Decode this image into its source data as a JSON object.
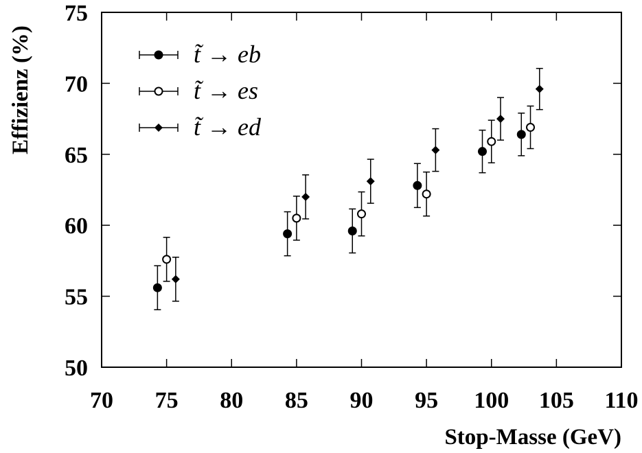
{
  "chart_data": {
    "type": "scatter",
    "xlabel": "Stop-Masse (GeV)",
    "ylabel": "Effizienz (%)",
    "xlim": [
      70,
      110
    ],
    "ylim": [
      50,
      75
    ],
    "xticks": [
      70,
      75,
      80,
      85,
      90,
      95,
      100,
      105,
      110
    ],
    "yticks": [
      50,
      55,
      60,
      65,
      70,
      75
    ],
    "legend_position": "top-left",
    "series": [
      {
        "name": "t̃ → eb",
        "marker": "filled-circle",
        "points": [
          {
            "x": 74.3,
            "y": 55.6,
            "err": 1.55
          },
          {
            "x": 84.3,
            "y": 59.4,
            "err": 1.55
          },
          {
            "x": 89.3,
            "y": 59.6,
            "err": 1.55
          },
          {
            "x": 94.3,
            "y": 62.8,
            "err": 1.55
          },
          {
            "x": 99.3,
            "y": 65.2,
            "err": 1.5
          },
          {
            "x": 102.3,
            "y": 66.4,
            "err": 1.5
          }
        ]
      },
      {
        "name": "t̃ → es",
        "marker": "open-circle",
        "points": [
          {
            "x": 75.0,
            "y": 57.6,
            "err": 1.55
          },
          {
            "x": 85.0,
            "y": 60.5,
            "err": 1.55
          },
          {
            "x": 90.0,
            "y": 60.8,
            "err": 1.55
          },
          {
            "x": 95.0,
            "y": 62.2,
            "err": 1.55
          },
          {
            "x": 100.0,
            "y": 65.9,
            "err": 1.5
          },
          {
            "x": 103.0,
            "y": 66.9,
            "err": 1.5
          }
        ]
      },
      {
        "name": "t̃ → ed",
        "marker": "filled-diamond",
        "points": [
          {
            "x": 75.7,
            "y": 56.2,
            "err": 1.55
          },
          {
            "x": 85.7,
            "y": 62.0,
            "err": 1.55
          },
          {
            "x": 90.7,
            "y": 63.1,
            "err": 1.55
          },
          {
            "x": 95.7,
            "y": 65.3,
            "err": 1.5
          },
          {
            "x": 100.7,
            "y": 67.5,
            "err": 1.5
          },
          {
            "x": 103.7,
            "y": 69.6,
            "err": 1.45
          }
        ]
      }
    ]
  }
}
